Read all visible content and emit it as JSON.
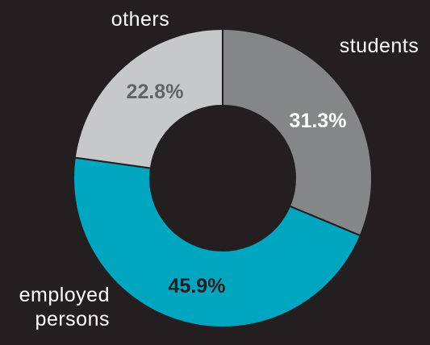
{
  "chart_data": {
    "type": "pie",
    "variant": "donut",
    "slices": [
      {
        "label": "students",
        "display_label": [
          "students"
        ],
        "value": 31.3,
        "value_label": "31.3%",
        "color": "#848688",
        "value_color": "#ffffff"
      },
      {
        "label": "employed persons",
        "display_label": [
          "employed",
          "persons"
        ],
        "value": 45.9,
        "value_label": "45.9%",
        "color": "#00a5bf",
        "value_color": "#231f20"
      },
      {
        "label": "others",
        "display_label": [
          "others"
        ],
        "value": 22.8,
        "value_label": "22.8%",
        "color": "#c6c8ca",
        "value_color": "#616365"
      }
    ],
    "title": "",
    "legend": "none",
    "start_angle": "12 o'clock",
    "direction": "clockwise",
    "background_color": "#231f20",
    "separator_color": "#231f20"
  }
}
